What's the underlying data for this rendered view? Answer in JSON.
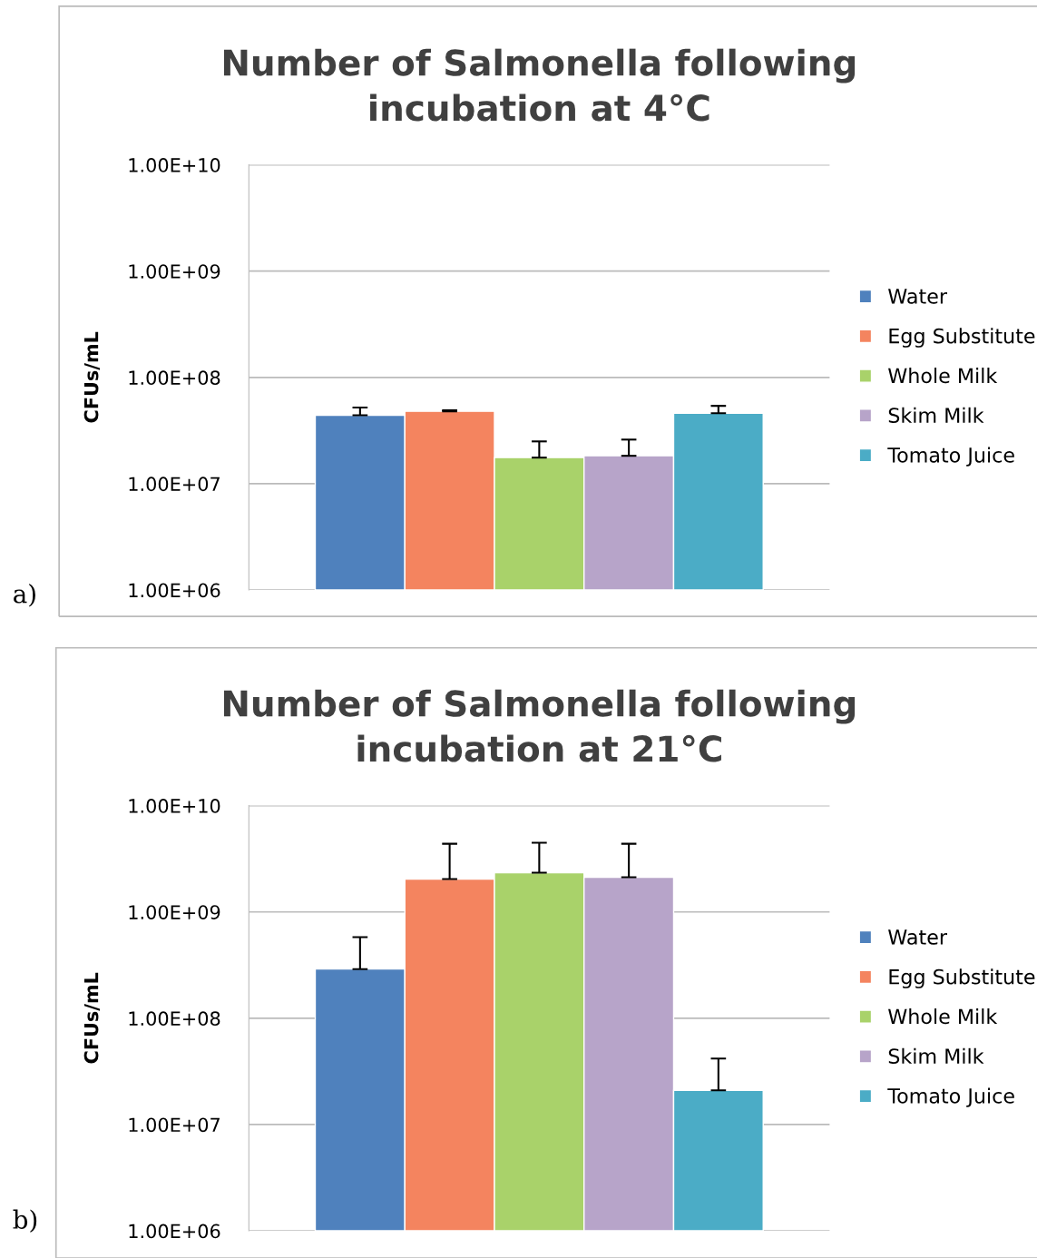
{
  "chart_data": [
    {
      "type": "bar",
      "title": "Number of Salmonella following\nincubation at 4°C",
      "ylabel": "CFUs/mL",
      "categories": [
        null
      ],
      "log": true,
      "grid": "y",
      "legend": "right",
      "tick_labels": "y",
      "ylim": [
        1000000,
        10000000000
      ],
      "yticks": [
        {
          "value": 1000000,
          "label": "1.00E+06"
        },
        {
          "value": 10000000,
          "label": "1.00E+07"
        },
        {
          "value": 100000000,
          "label": "1.00E+08"
        },
        {
          "value": 1000000000,
          "label": "1.00E+09"
        },
        {
          "value": 10000000000,
          "label": "1.00E+10"
        }
      ],
      "annotations": [
        "a)"
      ],
      "series": [
        {
          "name": "Water",
          "color": "#4f81bd",
          "values": [
            44000000
          ],
          "errors": [
            [
              44000000,
              52000000
            ]
          ]
        },
        {
          "name": "Egg Substitute",
          "color": "#f4845f",
          "values": [
            48000000
          ],
          "errors": [
            [
              48000000,
              49000000
            ]
          ]
        },
        {
          "name": "Whole Milk",
          "color": "#a9d26a",
          "values": [
            17600000
          ],
          "errors": [
            [
              17600000,
              25000000
            ]
          ]
        },
        {
          "name": "Skim Milk",
          "color": "#b7a4c9",
          "values": [
            18300000
          ],
          "errors": [
            [
              18300000,
              26000000
            ]
          ]
        },
        {
          "name": "Tomato Juice",
          "color": "#4bacc6",
          "values": [
            46000000
          ],
          "errors": [
            [
              46000000,
              54000000
            ]
          ]
        }
      ]
    },
    {
      "type": "bar",
      "title": "Number of Salmonella following\nincubation at 21°C",
      "ylabel": "CFUs/mL",
      "categories": [
        null
      ],
      "log": true,
      "grid": "y",
      "legend": "right",
      "tick_labels": "y",
      "ylim": [
        1000000,
        10000000000
      ],
      "yticks": [
        {
          "value": 1000000,
          "label": "1.00E+06"
        },
        {
          "value": 10000000,
          "label": "1.00E+07"
        },
        {
          "value": 100000000,
          "label": "1.00E+08"
        },
        {
          "value": 1000000000,
          "label": "1.00E+09"
        },
        {
          "value": 10000000000,
          "label": "1.00E+10"
        }
      ],
      "annotations": [
        "b)"
      ],
      "series": [
        {
          "name": "Water",
          "color": "#4f81bd",
          "values": [
            290000000
          ],
          "errors": [
            [
              290000000,
              580000000
            ]
          ]
        },
        {
          "name": "Egg Substitute",
          "color": "#f4845f",
          "values": [
            2040000000
          ],
          "errors": [
            [
              2040000000,
              4380000000
            ]
          ]
        },
        {
          "name": "Whole Milk",
          "color": "#a9d26a",
          "values": [
            2340000000
          ],
          "errors": [
            [
              2340000000,
              4470000000
            ]
          ]
        },
        {
          "name": "Skim Milk",
          "color": "#b7a4c9",
          "values": [
            2120000000
          ],
          "errors": [
            [
              2120000000,
              4380000000
            ]
          ]
        },
        {
          "name": "Tomato Juice",
          "color": "#4bacc6",
          "values": [
            21000000
          ],
          "errors": [
            [
              21000000,
              41700000
            ]
          ]
        }
      ]
    }
  ]
}
